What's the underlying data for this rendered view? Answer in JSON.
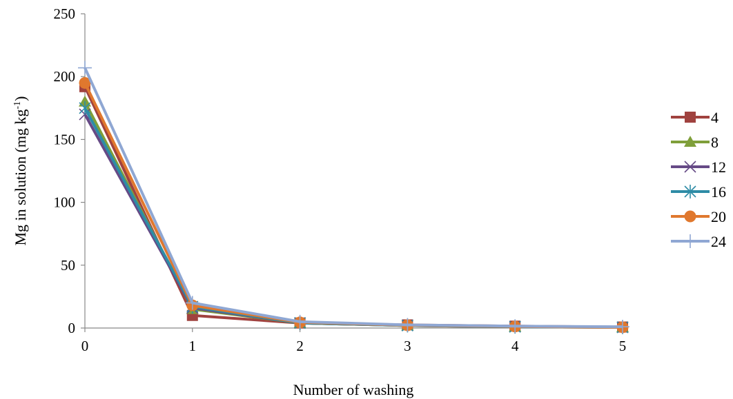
{
  "chart_data": {
    "type": "line",
    "title": "",
    "xlabel": "Number of washing",
    "ylabel_main": "Mg in solution (mg kg",
    "ylabel_sup": "-1",
    "ylabel_close": ")",
    "x": [
      0,
      1,
      2,
      3,
      4,
      5
    ],
    "xlim": [
      0,
      5
    ],
    "ylim": [
      0,
      250
    ],
    "yticks": [
      0,
      50,
      100,
      150,
      200,
      250
    ],
    "grid": false,
    "legend_position": "right",
    "series": [
      {
        "name": "4",
        "color": "#A0423F",
        "marker": "square",
        "values": [
          192,
          10,
          4,
          2.5,
          1.5,
          0.8
        ]
      },
      {
        "name": "8",
        "color": "#7F9F3A",
        "marker": "triangle",
        "values": [
          180,
          15,
          4,
          2,
          1,
          0.6
        ]
      },
      {
        "name": "12",
        "color": "#664A86",
        "marker": "x",
        "values": [
          170,
          16,
          4,
          2,
          1,
          0.6
        ]
      },
      {
        "name": "16",
        "color": "#2E8CA6",
        "marker": "star",
        "values": [
          175,
          17,
          4,
          2,
          1,
          0.6
        ]
      },
      {
        "name": "20",
        "color": "#E0782E",
        "marker": "circle",
        "values": [
          195,
          18,
          4.5,
          2.2,
          1.2,
          0.6
        ]
      },
      {
        "name": "24",
        "color": "#8FA7D3",
        "marker": "plus",
        "values": [
          207,
          20,
          5,
          2.5,
          1.5,
          1
        ]
      }
    ]
  }
}
